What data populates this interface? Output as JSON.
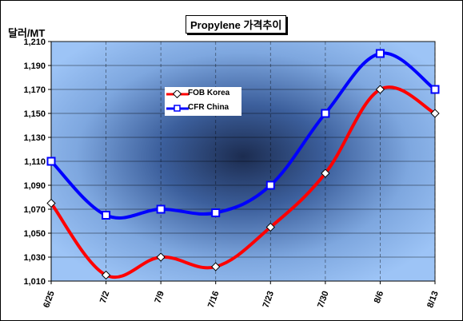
{
  "chart_data": {
    "type": "line",
    "title": "Propylene 가격추이",
    "ylabel": "달러/MT",
    "xlabel": "",
    "categories": [
      "6/25",
      "7/2",
      "7/9",
      "7/16",
      "7/23",
      "7/30",
      "8/6",
      "8/13"
    ],
    "ylim": [
      1010,
      1210
    ],
    "yticks": [
      "1,010",
      "1,030",
      "1,050",
      "1,070",
      "1,090",
      "1,110",
      "1,130",
      "1,150",
      "1,170",
      "1,190",
      "1,210"
    ],
    "grid": true,
    "legend_position": "upper-left",
    "series": [
      {
        "name": "FOB Korea",
        "color": "#ff0000",
        "marker": "diamond",
        "values": [
          1075,
          1015,
          1030,
          1022,
          1055,
          1100,
          1170,
          1150
        ]
      },
      {
        "name": "CFR China",
        "color": "#0000ff",
        "marker": "square",
        "values": [
          1110,
          1065,
          1070,
          1067,
          1090,
          1150,
          1200,
          1170
        ]
      }
    ]
  }
}
